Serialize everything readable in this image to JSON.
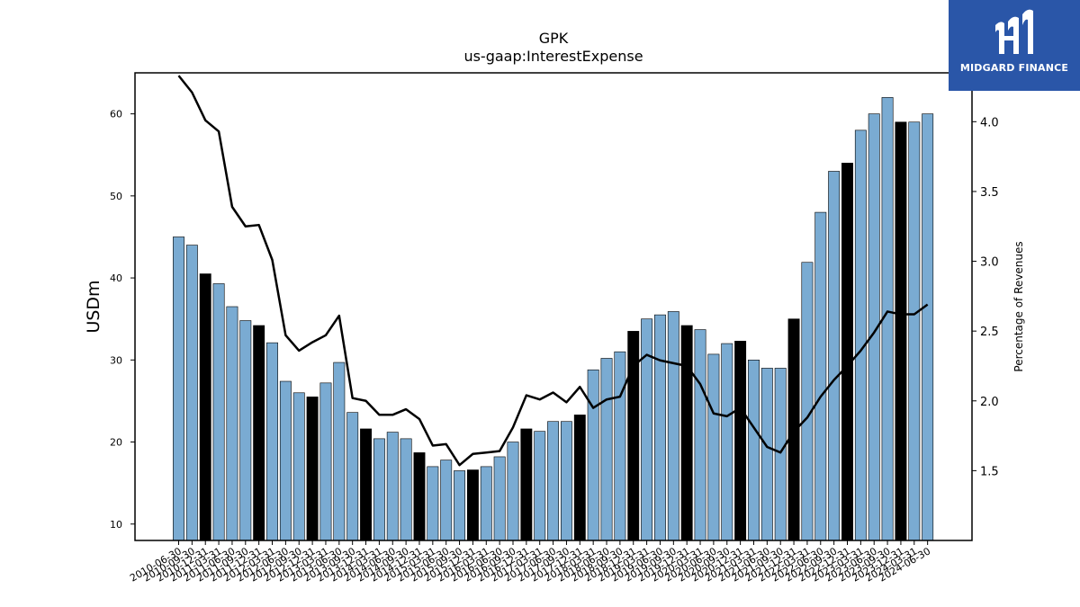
{
  "chart_data": {
    "type": "bar",
    "title": "GPK",
    "subtitle": "us-gaap:InterestExpense",
    "ylabel": "USDm",
    "y2label": "Percentage of Revenues",
    "ylim": [
      8,
      65
    ],
    "y2lim": [
      1.0,
      4.35
    ],
    "yticks": [
      10,
      20,
      30,
      40,
      50,
      60
    ],
    "y2ticks": [
      "1.5",
      "2.0",
      "2.5",
      "3.0",
      "3.5",
      "4.0"
    ],
    "bar_color": "#7aabd2",
    "highlight_color": "#000000",
    "line_color": "#000000",
    "categories": [
      "2010-06-30",
      "2010-09-30",
      "2010-12-31",
      "2011-03-31",
      "2011-06-30",
      "2011-09-30",
      "2011-12-31",
      "2012-03-31",
      "2012-06-30",
      "2012-09-30",
      "2012-12-31",
      "2013-03-31",
      "2013-06-30",
      "2013-09-30",
      "2013-12-31",
      "2014-03-31",
      "2014-06-30",
      "2014-09-30",
      "2014-12-31",
      "2015-03-31",
      "2015-06-30",
      "2015-09-30",
      "2015-12-31",
      "2016-03-31",
      "2016-06-30",
      "2016-09-30",
      "2016-12-31",
      "2017-03-31",
      "2017-06-30",
      "2017-09-30",
      "2017-12-31",
      "2018-03-31",
      "2018-06-30",
      "2018-09-30",
      "2018-12-31",
      "2019-03-31",
      "2019-06-30",
      "2019-09-30",
      "2019-12-31",
      "2020-03-31",
      "2020-06-30",
      "2020-09-30",
      "2020-12-31",
      "2021-03-31",
      "2021-06-30",
      "2021-09-30",
      "2021-12-31",
      "2022-03-31",
      "2022-06-30",
      "2022-09-30",
      "2022-12-31",
      "2023-03-31",
      "2023-06-30",
      "2023-09-30",
      "2023-12-31",
      "2024-03-31",
      "2024-06-30"
    ],
    "visible_tick_labels": [
      "2010-06-30",
      "2010-09-30",
      "2010-12-31",
      "2011-03-31",
      "2011-06-30",
      "2011-09-30",
      "2011-12-31",
      "2012-03-31",
      "2012-06-30",
      "2012-09-30",
      "2012-12-31",
      "2013-03-31",
      "2013-06-30",
      "2013-09-30",
      "2013-12-31",
      "2014-03-31",
      "2014-06-30",
      "2014-09-30",
      "2014-12-31",
      "2015-03-31",
      "2015-06-30",
      "2015-09-30",
      "2015-12-31",
      "2016-03-31",
      "2016-06-30",
      "2016-09-30",
      "2016-12-31",
      "2017-03-31",
      "2017-06-30",
      "2017-09-30",
      "2017-12-31",
      "2018-03-31",
      "2018-06-30",
      "2018-09-30",
      "2018-12-31",
      "2019-03-31",
      "2019-06-30",
      "2019-09-30",
      "2019-12-31",
      "2020-03-31",
      "2020-06-30",
      "2020-09-30",
      "2020-12-31",
      "2021-03-31",
      "2021-06-30",
      "2021-09-30",
      "2021-12-31",
      "2022-03-31",
      "2022-06-30",
      "2022-09-30",
      "2022-12-31",
      "2023-03-31",
      "2023-06-30",
      "2023-09-30",
      "2023-12-31",
      "2024-03-31",
      "2024-06-30"
    ],
    "highlighted_indices": [
      2,
      6,
      10,
      14,
      18,
      22,
      26,
      30,
      34,
      38,
      42,
      46,
      50,
      54
    ],
    "series": [
      {
        "type": "bar",
        "values": [
          45.0,
          44.0,
          40.5,
          39.3,
          36.5,
          34.8,
          34.2,
          32.1,
          27.4,
          26.0,
          25.5,
          27.2,
          29.7,
          23.6,
          21.6,
          20.4,
          21.2,
          20.4,
          18.7,
          17.0,
          17.8,
          16.5,
          16.6,
          17.0,
          18.2,
          20.0,
          21.6,
          21.3,
          22.5,
          22.5,
          23.3,
          28.8,
          30.2,
          31.0,
          33.5,
          35.0,
          35.5,
          35.9,
          34.2,
          33.7,
          30.7,
          32.0,
          32.3,
          30.0,
          29.0,
          29.0,
          35.0,
          41.9,
          48.0,
          53.0,
          54.0,
          58.0,
          60.0,
          62.0,
          59.0,
          59.0,
          60.0
        ]
      },
      {
        "type": "line",
        "axis": "right",
        "values": [
          4.33,
          4.21,
          4.01,
          3.93,
          3.39,
          3.25,
          3.26,
          3.01,
          2.47,
          2.36,
          2.42,
          2.47,
          2.61,
          2.02,
          2.0,
          1.9,
          1.9,
          1.94,
          1.87,
          1.68,
          1.69,
          1.54,
          1.62,
          1.63,
          1.64,
          1.81,
          2.04,
          2.01,
          2.06,
          1.99,
          2.1,
          1.95,
          2.01,
          2.03,
          2.25,
          2.33,
          2.29,
          2.27,
          2.25,
          2.12,
          1.91,
          1.89,
          1.95,
          1.81,
          1.67,
          1.63,
          1.78,
          1.88,
          2.03,
          2.15,
          2.25,
          2.36,
          2.49,
          2.64,
          2.62,
          2.62,
          2.69
        ]
      }
    ]
  },
  "logo": {
    "text": "MIDGARD FINANCE",
    "bg_color": "#2a56a8"
  }
}
